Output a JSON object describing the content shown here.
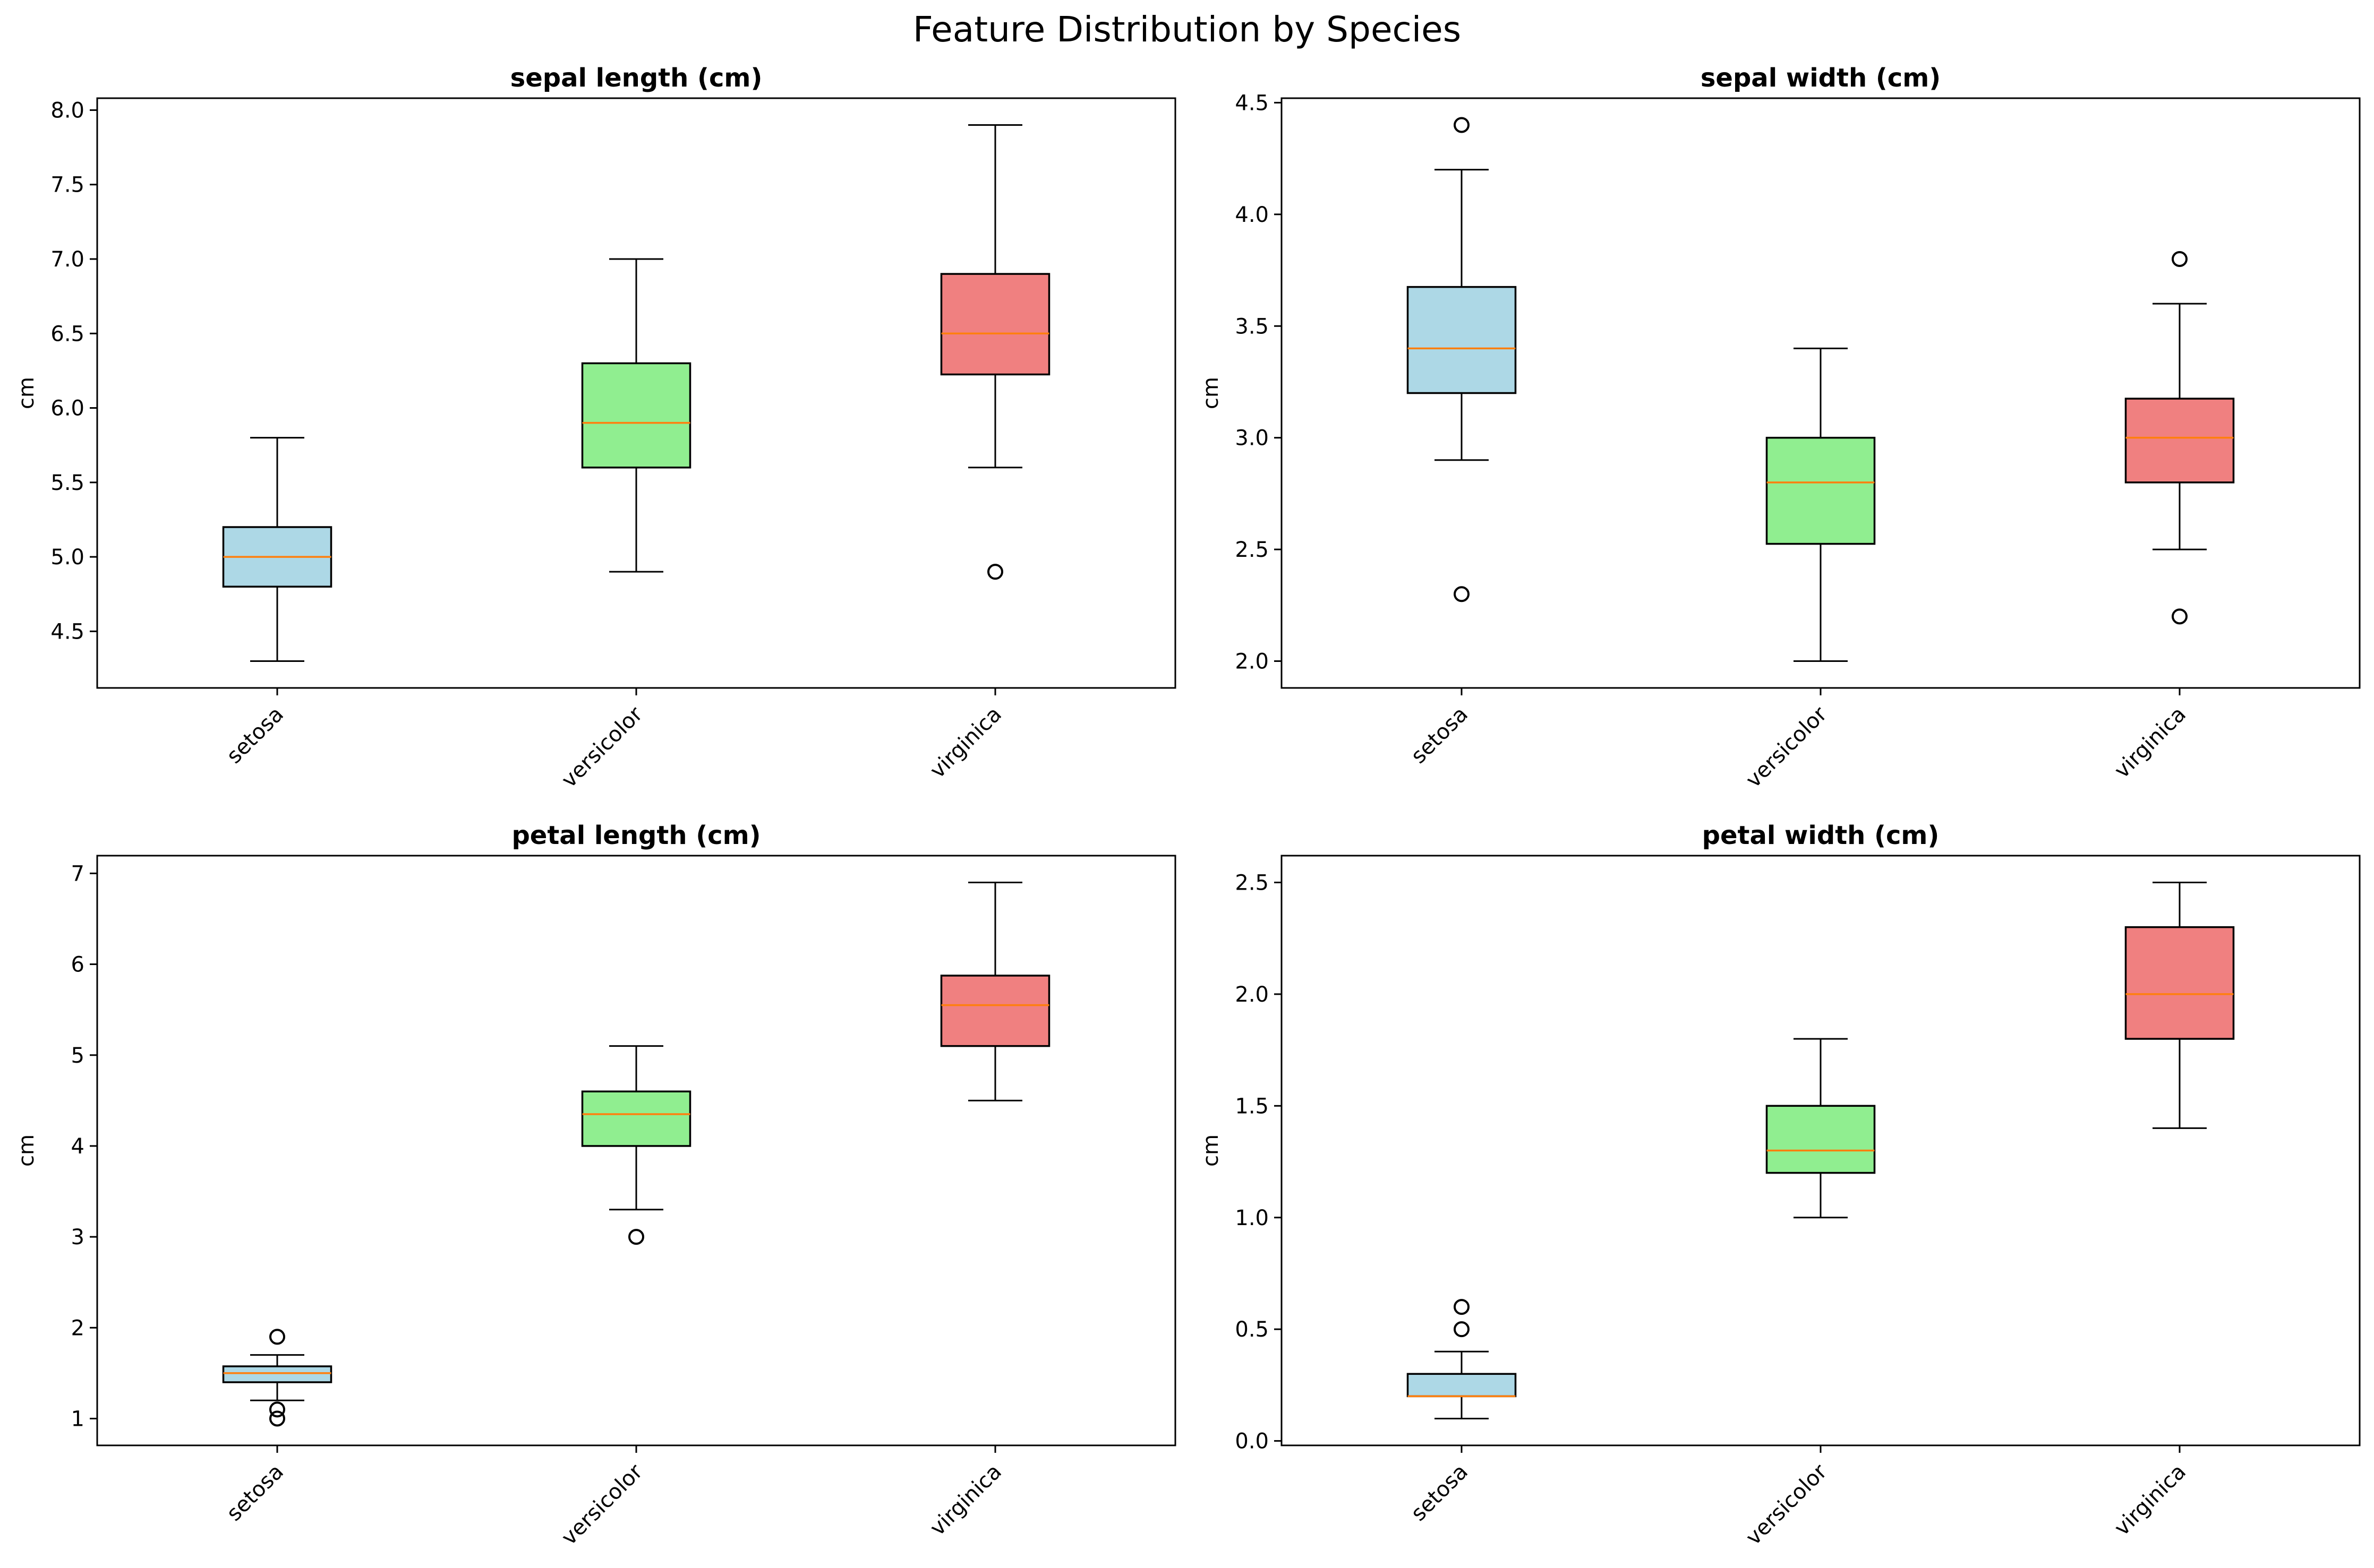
{
  "figure_title": "Feature Distribution by Species",
  "colors": {
    "setosa": "#add8e6",
    "versicolor": "#90ee90",
    "virginica": "#f08080",
    "median": "#ff7f0e",
    "outline": "#000000",
    "background": "#ffffff"
  },
  "chart_data": [
    {
      "type": "box",
      "title": "sepal length (cm)",
      "xlabel": "",
      "ylabel": "cm",
      "categories": [
        "setosa",
        "versicolor",
        "virginica"
      ],
      "ylim": [
        4.12,
        8.08
      ],
      "yticks": [
        4.5,
        5.0,
        5.5,
        6.0,
        6.5,
        7.0,
        7.5,
        8.0
      ],
      "tick_decimals": 1,
      "grid": false,
      "boxes": [
        {
          "category": "setosa",
          "whisker_low": 4.3,
          "q1": 4.8,
          "median": 5.0,
          "q3": 5.2,
          "whisker_high": 5.8,
          "outliers": []
        },
        {
          "category": "versicolor",
          "whisker_low": 4.9,
          "q1": 5.6,
          "median": 5.9,
          "q3": 6.3,
          "whisker_high": 7.0,
          "outliers": []
        },
        {
          "category": "virginica",
          "whisker_low": 5.6,
          "q1": 6.225,
          "median": 6.5,
          "q3": 6.9,
          "whisker_high": 7.9,
          "outliers": [
            4.9
          ]
        }
      ]
    },
    {
      "type": "box",
      "title": "sepal width (cm)",
      "xlabel": "",
      "ylabel": "cm",
      "categories": [
        "setosa",
        "versicolor",
        "virginica"
      ],
      "ylim": [
        1.88,
        4.52
      ],
      "yticks": [
        2.0,
        2.5,
        3.0,
        3.5,
        4.0,
        4.5
      ],
      "tick_decimals": 1,
      "grid": false,
      "boxes": [
        {
          "category": "setosa",
          "whisker_low": 2.9,
          "q1": 3.2,
          "median": 3.4,
          "q3": 3.675,
          "whisker_high": 4.2,
          "outliers": [
            4.4,
            2.3
          ]
        },
        {
          "category": "versicolor",
          "whisker_low": 2.0,
          "q1": 2.525,
          "median": 2.8,
          "q3": 3.0,
          "whisker_high": 3.4,
          "outliers": []
        },
        {
          "category": "virginica",
          "whisker_low": 2.5,
          "q1": 2.8,
          "median": 3.0,
          "q3": 3.175,
          "whisker_high": 3.6,
          "outliers": [
            3.8,
            2.2
          ]
        }
      ]
    },
    {
      "type": "box",
      "title": "petal length (cm)",
      "xlabel": "",
      "ylabel": "cm",
      "categories": [
        "setosa",
        "versicolor",
        "virginica"
      ],
      "ylim": [
        0.705,
        7.195
      ],
      "yticks": [
        1,
        2,
        3,
        4,
        5,
        6,
        7
      ],
      "tick_decimals": 0,
      "grid": false,
      "boxes": [
        {
          "category": "setosa",
          "whisker_low": 1.2,
          "q1": 1.4,
          "median": 1.5,
          "q3": 1.575,
          "whisker_high": 1.7,
          "outliers": [
            1.9,
            1.1,
            1.0
          ]
        },
        {
          "category": "versicolor",
          "whisker_low": 3.3,
          "q1": 4.0,
          "median": 4.35,
          "q3": 4.6,
          "whisker_high": 5.1,
          "outliers": [
            3.0
          ]
        },
        {
          "category": "virginica",
          "whisker_low": 4.5,
          "q1": 5.1,
          "median": 5.55,
          "q3": 5.875,
          "whisker_high": 6.9,
          "outliers": []
        }
      ]
    },
    {
      "type": "box",
      "title": "petal width (cm)",
      "xlabel": "",
      "ylabel": "cm",
      "categories": [
        "setosa",
        "versicolor",
        "virginica"
      ],
      "ylim": [
        -0.02,
        2.62
      ],
      "yticks": [
        0.0,
        0.5,
        1.0,
        1.5,
        2.0,
        2.5
      ],
      "tick_decimals": 1,
      "grid": false,
      "boxes": [
        {
          "category": "setosa",
          "whisker_low": 0.1,
          "q1": 0.2,
          "median": 0.2,
          "q3": 0.3,
          "whisker_high": 0.4,
          "outliers": [
            0.6,
            0.5
          ]
        },
        {
          "category": "versicolor",
          "whisker_low": 1.0,
          "q1": 1.2,
          "median": 1.3,
          "q3": 1.5,
          "whisker_high": 1.8,
          "outliers": []
        },
        {
          "category": "virginica",
          "whisker_low": 1.4,
          "q1": 1.8,
          "median": 2.0,
          "q3": 2.3,
          "whisker_high": 2.5,
          "outliers": []
        }
      ]
    }
  ]
}
